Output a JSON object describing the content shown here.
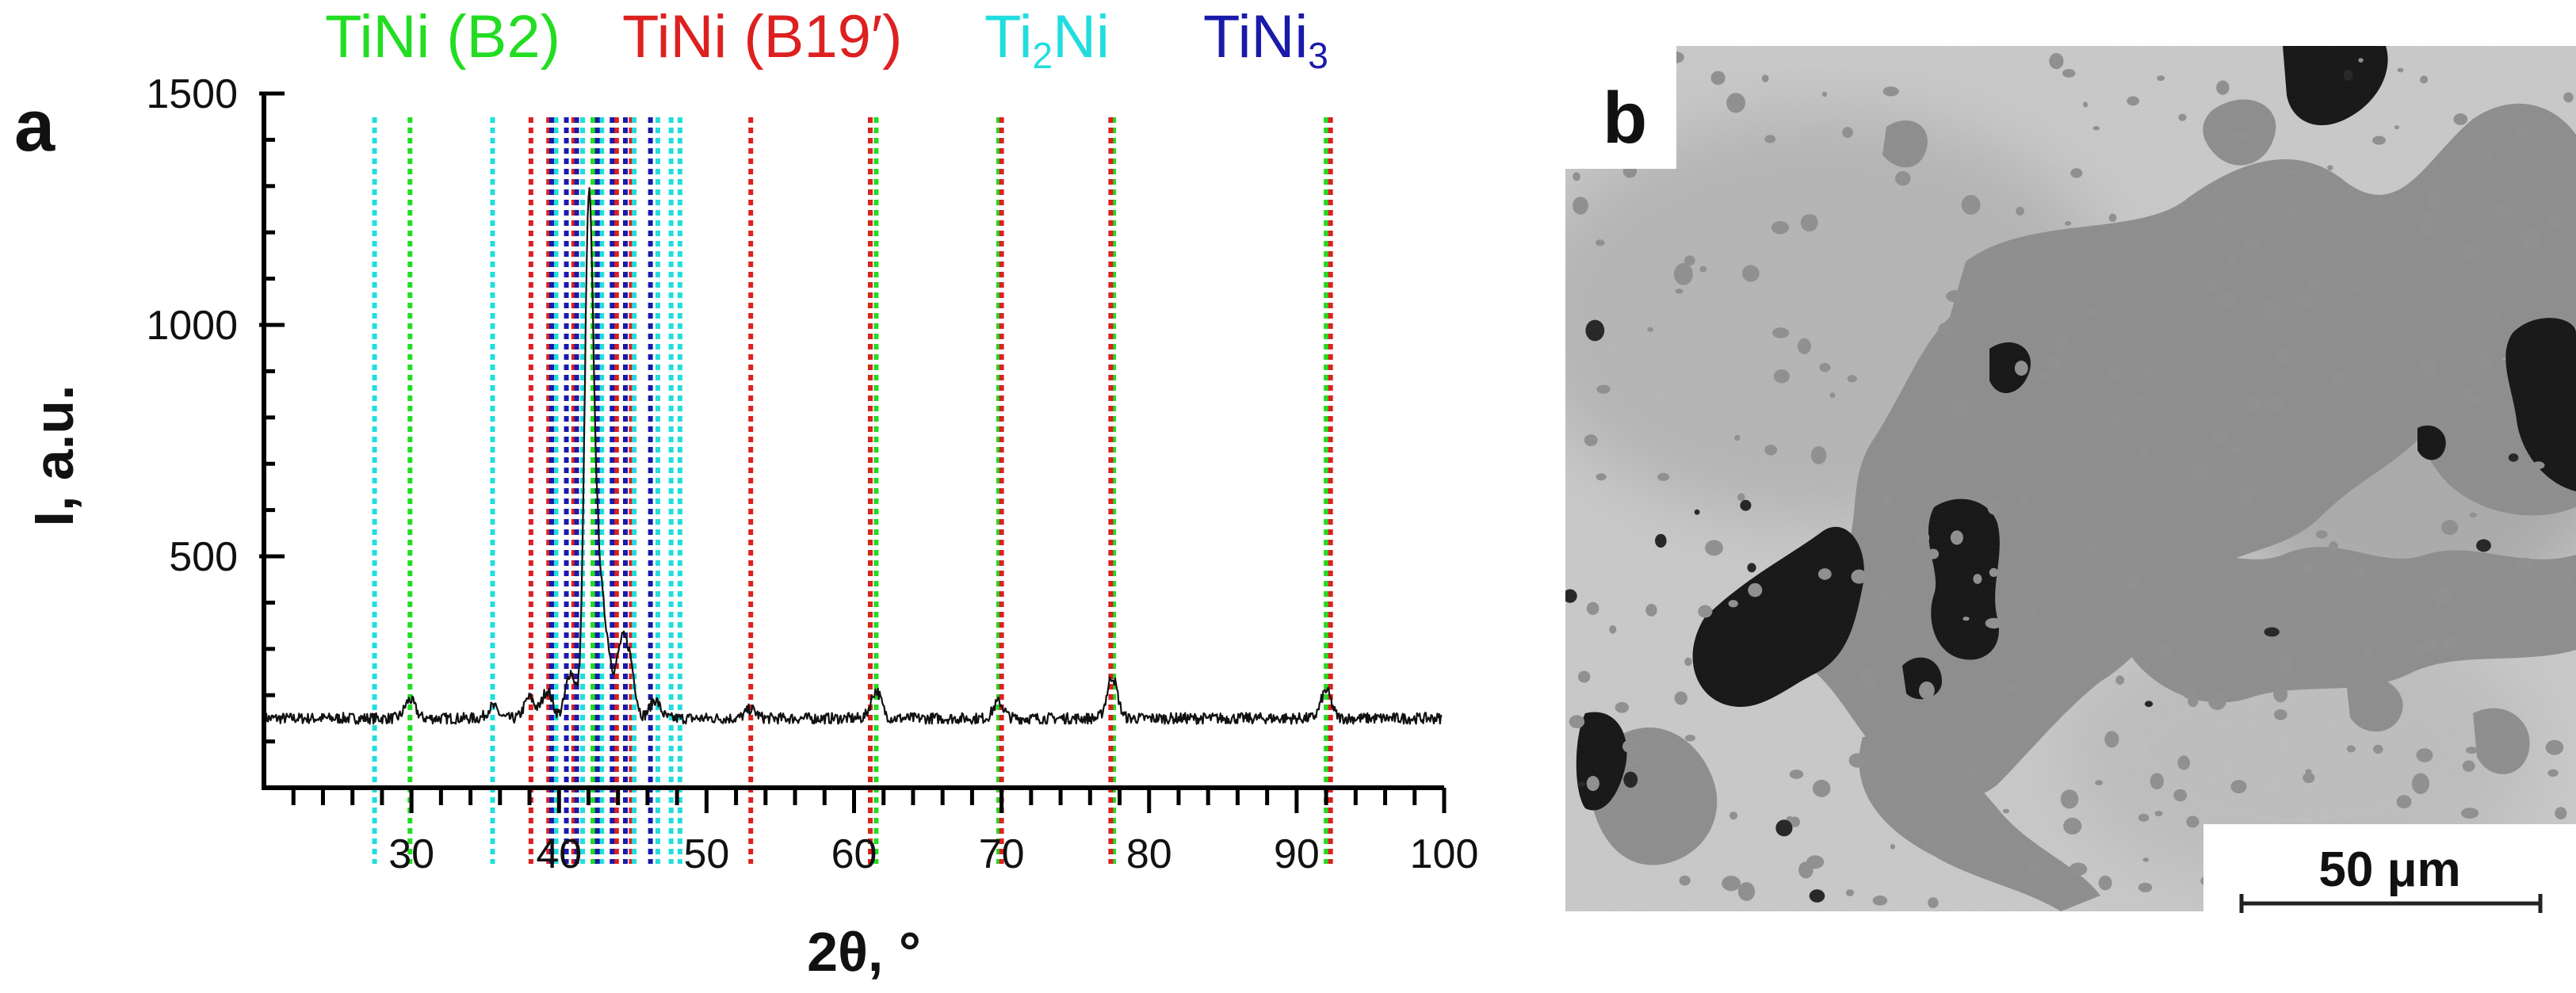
{
  "panel_a_label": "a",
  "panel_b_label": "b",
  "legend": [
    {
      "text": "TiNi (B2)",
      "color": "#22dd22"
    },
    {
      "text": "TiNi (B19′)",
      "color": "#dd2020"
    },
    {
      "base": "Ti",
      "sub": "2",
      "after": "Ni",
      "color": "#22dddd"
    },
    {
      "base": "TiNi",
      "sub": "3",
      "after": "",
      "color": "#1a1aaa"
    }
  ],
  "chart_data": {
    "type": "line",
    "title": "",
    "xlabel": "2θ, °",
    "ylabel": "I, a.u.",
    "xlim": [
      20,
      100
    ],
    "ylim": [
      0,
      1500
    ],
    "xticks": [
      30,
      40,
      50,
      60,
      70,
      80,
      90,
      100
    ],
    "yticks": [
      500,
      1000,
      1500
    ],
    "baseline": 150,
    "noise": 12,
    "peaks": [
      {
        "x": 29.9,
        "y": 190
      },
      {
        "x": 35.5,
        "y": 175
      },
      {
        "x": 38.0,
        "y": 195
      },
      {
        "x": 39.2,
        "y": 210
      },
      {
        "x": 40.8,
        "y": 250
      },
      {
        "x": 42.0,
        "y": 1150
      },
      {
        "x": 42.5,
        "y": 500
      },
      {
        "x": 43.2,
        "y": 300
      },
      {
        "x": 44.2,
        "y": 290
      },
      {
        "x": 44.8,
        "y": 260
      },
      {
        "x": 46.5,
        "y": 190
      },
      {
        "x": 53.0,
        "y": 170
      },
      {
        "x": 61.5,
        "y": 210
      },
      {
        "x": 69.8,
        "y": 185
      },
      {
        "x": 77.5,
        "y": 240
      },
      {
        "x": 92.0,
        "y": 210
      }
    ],
    "reference_lines": [
      {
        "name": "TiNi (B2)",
        "color": "#22dd22",
        "positions": [
          29.9,
          42.3,
          61.5,
          69.8,
          77.6,
          92.0
        ]
      },
      {
        "name": "TiNi (B19′)",
        "color": "#dd2020",
        "positions": [
          38.1,
          39.3,
          41.0,
          43.9,
          44.9,
          53.0,
          61.1,
          70.0,
          77.4,
          92.3
        ]
      },
      {
        "name": "Ti2Ni",
        "color": "#22dddd",
        "positions": [
          27.5,
          35.5,
          39.8,
          41.6,
          42.9,
          45.1,
          46.7,
          47.6,
          48.2
        ]
      },
      {
        "name": "TiNi3",
        "color": "#1a1aaa",
        "positions": [
          39.5,
          40.5,
          41.2,
          42.6,
          43.6,
          44.5,
          46.2
        ]
      }
    ]
  },
  "scale_bar_label": "50 μm"
}
